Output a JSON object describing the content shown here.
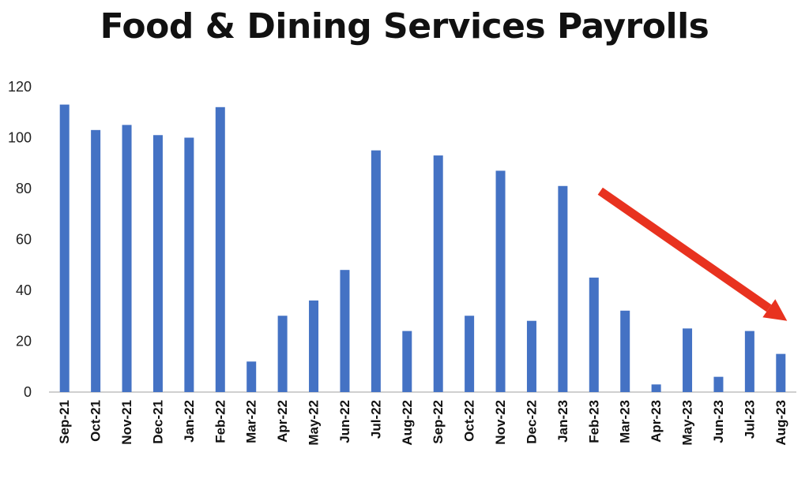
{
  "chart_data": {
    "type": "bar",
    "title": "Food & Dining Services Payrolls",
    "xlabel": "",
    "ylabel": "",
    "ylim": [
      0,
      120
    ],
    "yticks": [
      0,
      20,
      40,
      60,
      80,
      100,
      120
    ],
    "grid": false,
    "legend": "none",
    "categories": [
      "Sep-21",
      "Oct-21",
      "Nov-21",
      "Dec-21",
      "Jan-22",
      "Feb-22",
      "Mar-22",
      "Apr-22",
      "May-22",
      "Jun-22",
      "Jul-22",
      "Aug-22",
      "Sep-22",
      "Oct-22",
      "Nov-22",
      "Dec-22",
      "Jan-23",
      "Feb-23",
      "Mar-23",
      "Apr-23",
      "May-23",
      "Jun-23",
      "Jul-23",
      "Aug-23"
    ],
    "values": [
      113,
      103,
      105,
      101,
      100,
      112,
      12,
      30,
      36,
      48,
      95,
      24,
      93,
      30,
      87,
      28,
      81,
      45,
      32,
      3,
      25,
      6,
      24,
      15
    ],
    "bar_color": "#4472C4",
    "annotation": {
      "type": "arrow",
      "color": "#E8321F",
      "direction": "down-right"
    }
  }
}
